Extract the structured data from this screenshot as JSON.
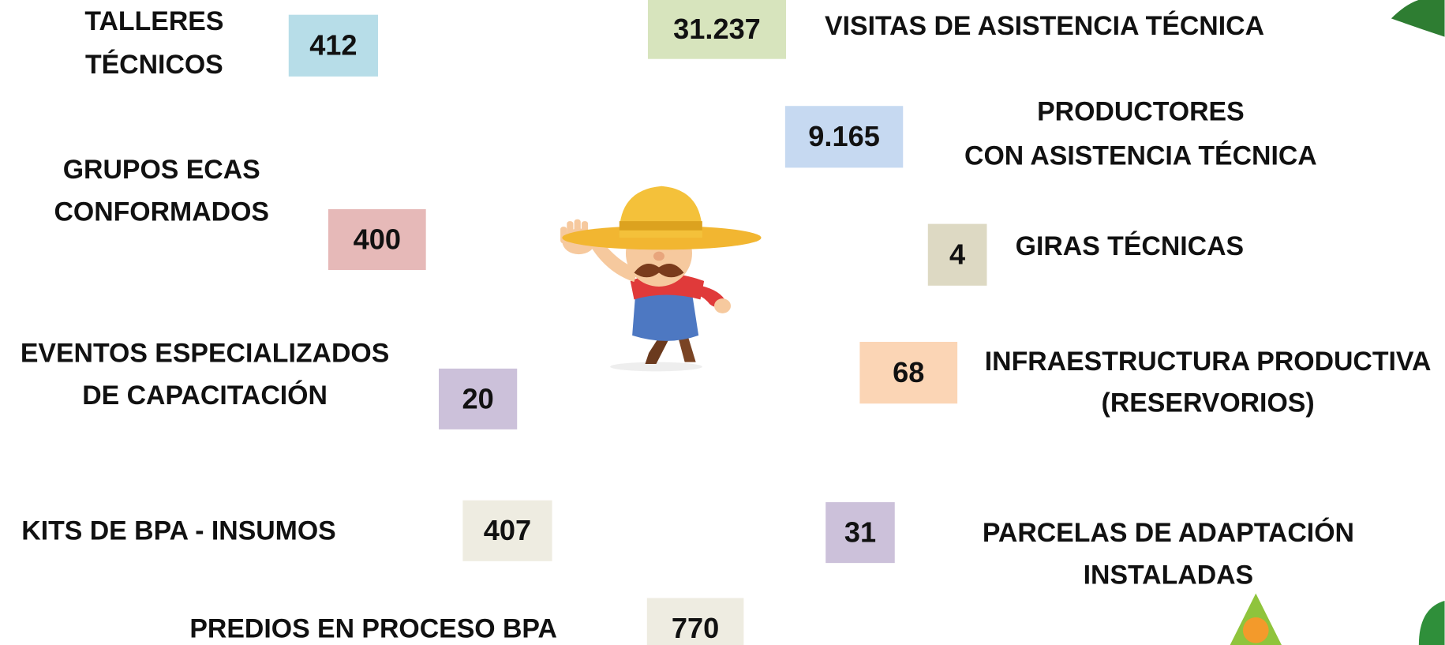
{
  "items": [
    {
      "label": [
        "TALLERES",
        "TÉCNICOS"
      ],
      "value": "412"
    },
    {
      "label": [
        "VISITAS DE ASISTENCIA TÉCNICA"
      ],
      "value": "31.237"
    },
    {
      "label": [
        "PRODUCTORES",
        "CON ASISTENCIA TÉCNICA"
      ],
      "value": "9.165"
    },
    {
      "label": [
        "GRUPOS ECAS",
        "CONFORMADOS"
      ],
      "value": "400"
    },
    {
      "label": [
        "GIRAS TÉCNICAS"
      ],
      "value": "4"
    },
    {
      "label": [
        "EVENTOS ESPECIALIZADOS",
        "DE CAPACITACIÓN"
      ],
      "value": "20"
    },
    {
      "label": [
        "INFRAESTRUCTURA PRODUCTIVA",
        "(RESERVORIOS)"
      ],
      "value": "68"
    },
    {
      "label": [
        "KITS DE BPA  - INSUMOS"
      ],
      "value": "407"
    },
    {
      "label": [
        "PARCELAS DE ADAPTACIÓN",
        "INSTALADAS"
      ],
      "value": "31"
    },
    {
      "label": [
        "PREDIOS EN PROCESO BPA"
      ],
      "value": "770"
    }
  ]
}
